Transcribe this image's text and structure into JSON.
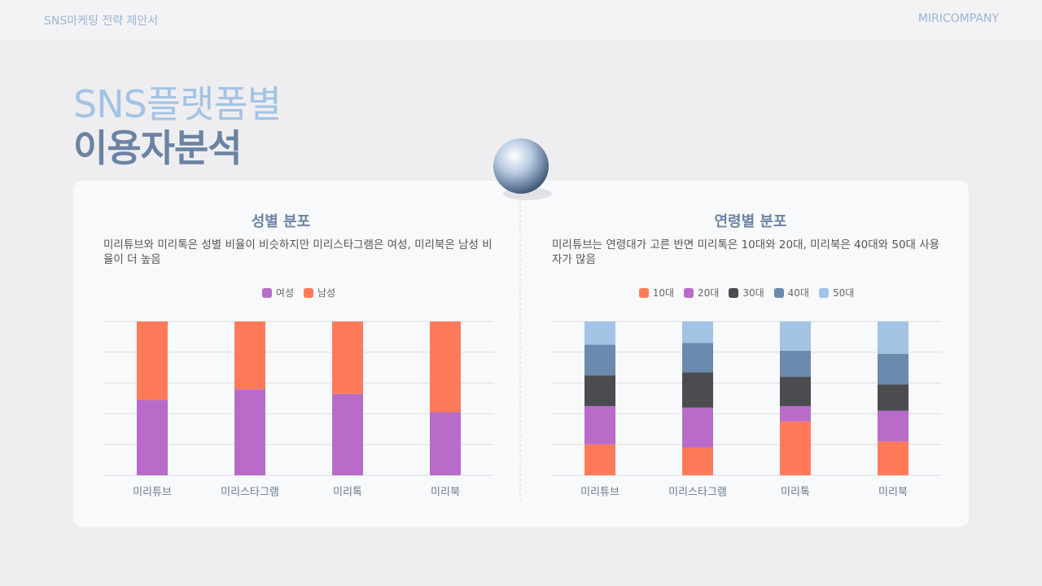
{
  "header": {
    "left": "SNS마케팅 전략 제안서",
    "right": "MIRICOMPANY"
  },
  "title": {
    "line1": "SNS플랫폼별",
    "line2": "이용자분석"
  },
  "chart_data": [
    {
      "type": "stacked-bar",
      "title": "성별 분포",
      "subtitle": "미리튜브와 미리톡은 성별 비율이 비슷하지만 미리스타그램은 여성, 미리북은 남성 비율이 더 높음",
      "categories": [
        "미리튜브",
        "미리스타그램",
        "미리톡",
        "미리북"
      ],
      "series": [
        {
          "name": "여성",
          "color": "#b86bc9",
          "values": [
            49,
            56,
            53,
            41
          ]
        },
        {
          "name": "남성",
          "color": "#ff7a59",
          "values": [
            51,
            44,
            47,
            59
          ]
        }
      ],
      "ylim": [
        0,
        100
      ],
      "yticks": [
        0,
        20,
        40,
        60,
        80,
        100
      ],
      "grid": true
    },
    {
      "type": "stacked-bar",
      "title": "연령별 분포",
      "subtitle": "미리튜브는 연령대가 고른 반면 미리톡은 10대와 20대, 미리북은 40대와 50대 사용자가 많음",
      "categories": [
        "미리튜브",
        "미리스타그램",
        "미리톡",
        "미리북"
      ],
      "series": [
        {
          "name": "10대",
          "color": "#ff7a59",
          "values": [
            20,
            18,
            35,
            22
          ]
        },
        {
          "name": "20대",
          "color": "#b86bc9",
          "values": [
            25,
            26,
            10,
            20
          ]
        },
        {
          "name": "30대",
          "color": "#4b4b50",
          "values": [
            20,
            23,
            19,
            17
          ]
        },
        {
          "name": "40대",
          "color": "#6b8aad",
          "values": [
            20,
            19,
            17,
            20
          ]
        },
        {
          "name": "50대",
          "color": "#a3c3e5",
          "values": [
            15,
            14,
            19,
            21
          ]
        }
      ],
      "ylim": [
        0,
        100
      ],
      "yticks": [
        0,
        20,
        40,
        60,
        80,
        100
      ],
      "grid": true
    }
  ]
}
